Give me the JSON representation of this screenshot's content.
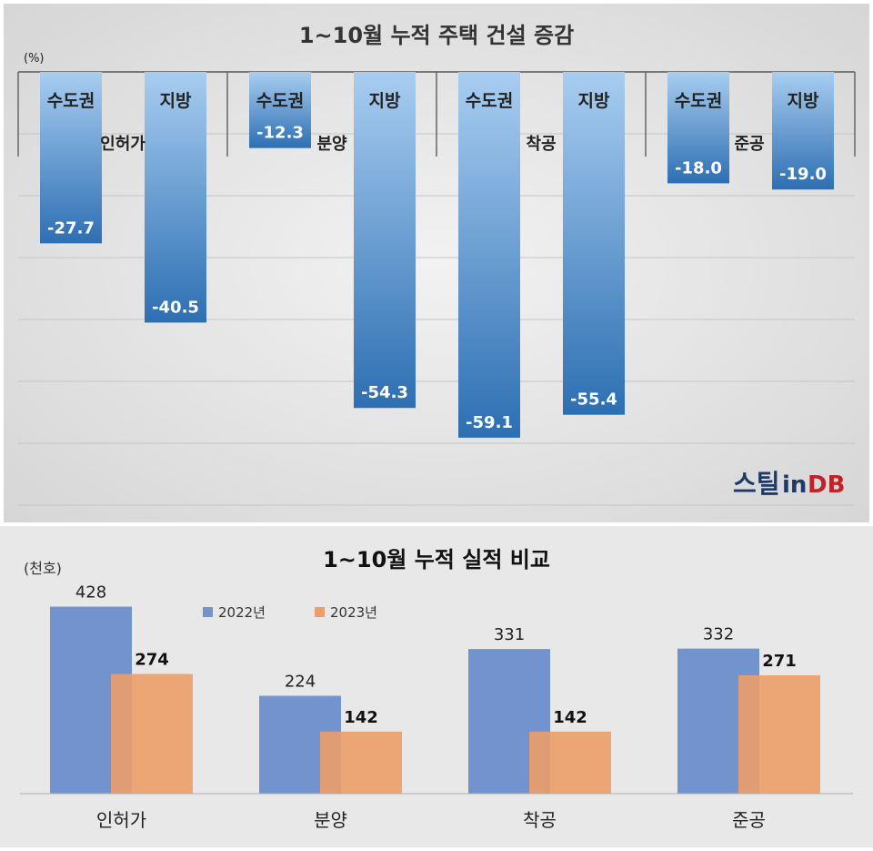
{
  "logo_text": {
    "part1": "스틸",
    "part2": "in",
    "part3": "DB"
  },
  "chart_data": [
    {
      "type": "bar",
      "title": "1~10월 누적 주택 건설 증감",
      "unit": "(%)",
      "ylim": [
        -70,
        0
      ],
      "grid": true,
      "groups": [
        {
          "name": "인허가",
          "bars": [
            {
              "name": "수도권",
              "value": -27.7
            },
            {
              "name": "지방",
              "value": -40.5
            }
          ]
        },
        {
          "name": "분양",
          "bars": [
            {
              "name": "수도권",
              "value": -12.3
            },
            {
              "name": "지방",
              "value": -54.3
            }
          ]
        },
        {
          "name": "착공",
          "bars": [
            {
              "name": "수도권",
              "value": -59.1
            },
            {
              "name": "지방",
              "value": -55.4
            }
          ]
        },
        {
          "name": "준공",
          "bars": [
            {
              "name": "수도권",
              "value": -18.0
            },
            {
              "name": "지방",
              "value": -19.0
            }
          ]
        }
      ],
      "value_labels": [
        "-27.7",
        "-40.5",
        "-12.3",
        "-54.3",
        "-59.1",
        "-55.4",
        "-18.0",
        "-19.0"
      ],
      "colors": {
        "bar_top": "#a8cdf0",
        "bar_bottom": "#2d6fb3",
        "background": "#dedede"
      }
    },
    {
      "type": "bar",
      "title": "1~10월 누적 실적 비교",
      "unit": "(천호)",
      "categories": [
        "인허가",
        "분양",
        "착공",
        "준공"
      ],
      "series": [
        {
          "name": "2022년",
          "values": [
            428,
            224,
            331,
            332
          ],
          "labels": [
            "428",
            "224",
            "331",
            "332"
          ],
          "color": "#7393cf"
        },
        {
          "name": "2023년",
          "values": [
            274,
            142,
            142,
            271
          ],
          "labels": [
            "274",
            "142",
            "142",
            "271"
          ],
          "color": "#ec9f68"
        }
      ],
      "legend": "top-center",
      "grid": false,
      "colors": {
        "background": "#e8e8e8"
      }
    }
  ]
}
